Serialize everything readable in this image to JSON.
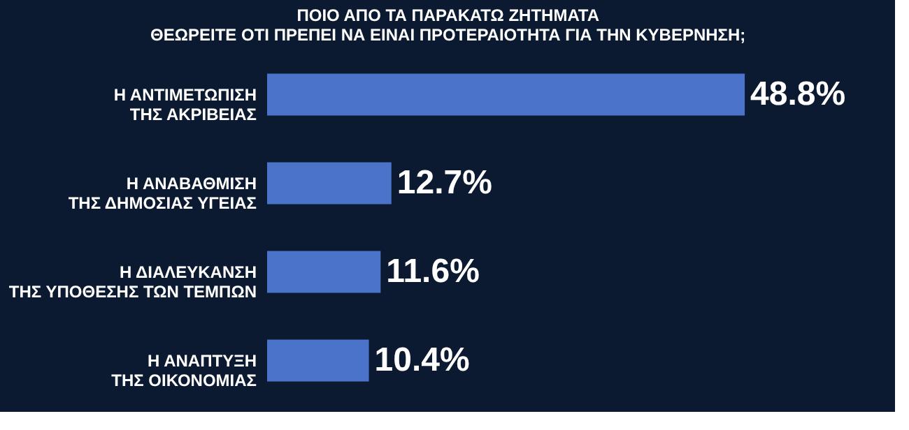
{
  "chart_data": {
    "type": "bar",
    "orientation": "horizontal",
    "title": [
      "ΠΟΙΟ ΑΠΟ ΤΑ ΠΑΡΑΚΑΤΩ ΖΗΤΗΜΑΤΑ",
      "ΘΕΩΡΕΙΤΕ ΟΤΙ ΠΡΕΠΕΙ ΝΑ ΕΙΝΑΙ ΠΡΟΤΕΡΑΙΟΤΗΤΑ ΓΙΑ ΤΗΝ ΚΥΒΕΡΝΗΣΗ;"
    ],
    "categories": [
      "Η ΑΝΤΙΜΕΤΩΠΙΣΗ\nΤΗΣ ΑΚΡΙΒΕΙΑΣ",
      "Η ΑΝΑΒΑΘΜΙΣΗ\nΤΗΣ ΔΗΜΟΣΙΑΣ ΥΓΕΙΑΣ",
      "Η ΔΙΑΛΕΥΚΑΝΣΗ\nΤΗΣ ΥΠΟΘΕΣΗΣ ΤΩΝ ΤΕΜΠΩΝ",
      "Η ΑΝΑΠΤΥΞΗ\nΤΗΣ ΟΙΚΟΝΟΜΙΑΣ"
    ],
    "values": [
      48.8,
      12.7,
      11.6,
      10.4
    ],
    "value_labels": [
      "48.8%",
      "12.7%",
      "11.6%",
      "10.4%"
    ],
    "color": "#4a73c9"
  }
}
